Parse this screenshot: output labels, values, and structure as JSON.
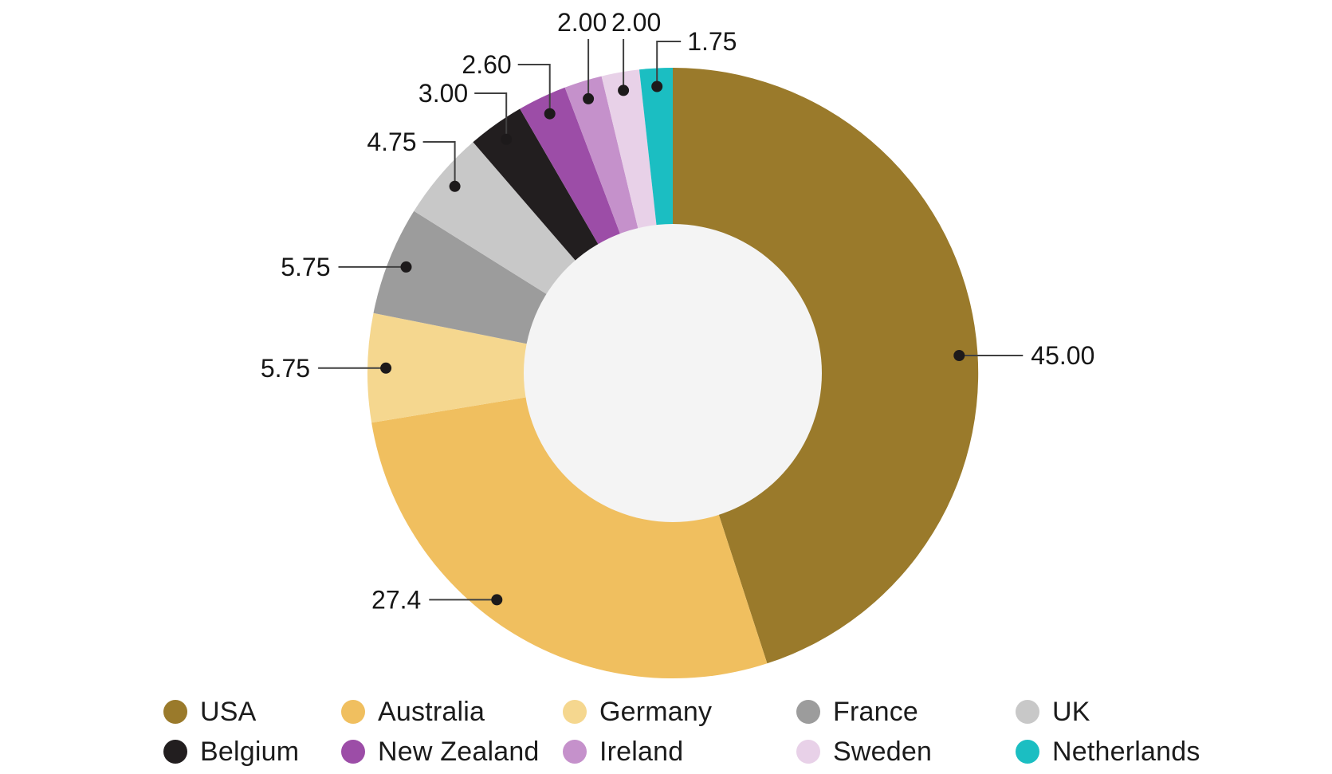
{
  "chart_data": {
    "type": "pie",
    "subtype": "donut",
    "direction": "clockwise",
    "start_angle": "top",
    "legend_position": "bottom",
    "background": "#FFFFFF",
    "hole_color": "#F4F4F4",
    "total": 100,
    "series": [
      {
        "label": "USA",
        "value": 45.0,
        "value_label": "45.00",
        "color": "#9A7A2B"
      },
      {
        "label": "Australia",
        "value": 27.4,
        "value_label": "27.4",
        "color": "#F0BF5F"
      },
      {
        "label": "Germany",
        "value": 5.75,
        "value_label": "5.75",
        "color": "#F5D78F"
      },
      {
        "label": "France",
        "value": 5.75,
        "value_label": "5.75",
        "color": "#9C9C9C"
      },
      {
        "label": "UK",
        "value": 4.75,
        "value_label": "4.75",
        "color": "#C8C8C8"
      },
      {
        "label": "Belgium",
        "value": 3.0,
        "value_label": "3.00",
        "color": "#221E1F"
      },
      {
        "label": "New Zealand",
        "value": 2.6,
        "value_label": "2.60",
        "color": "#9C4DA7"
      },
      {
        "label": "Ireland",
        "value": 2.0,
        "value_label": "2.00",
        "color": "#C591CB"
      },
      {
        "label": "Sweden",
        "value": 2.0,
        "value_label": "2.00",
        "color": "#E8D1E8"
      },
      {
        "label": "Netherlands",
        "value": 1.75,
        "value_label": "1.75",
        "color": "#1BBEC2"
      }
    ]
  }
}
